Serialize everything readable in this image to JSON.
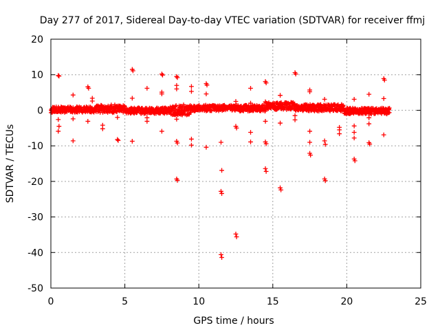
{
  "chart_data": {
    "type": "scatter",
    "title": "Day 277 of 2017, Sidereal Day-to-day VTEC variation (SDTVAR) for receiver ffmj",
    "xlabel": "GPS time / hours",
    "ylabel": "SDTVAR / TECUs",
    "xlim": [
      0,
      25
    ],
    "ylim": [
      -50,
      20
    ],
    "xticks": [
      0,
      5,
      10,
      15,
      20,
      25
    ],
    "yticks": [
      -50,
      -40,
      -30,
      -20,
      -10,
      0,
      10,
      20
    ],
    "grid": true,
    "marker": "plus",
    "color": "#ff0000",
    "series": [
      {
        "name": "SDTVAR",
        "band": {
          "x_start": 0.0,
          "x_end": 22.9,
          "step": 0.03,
          "segments": [
            {
              "x0": 0.0,
              "x1": 3.0,
              "center": 0.2,
              "spread": 0.9
            },
            {
              "x0": 3.0,
              "x1": 5.0,
              "center": 0.4,
              "spread": 1.2
            },
            {
              "x0": 5.0,
              "x1": 8.0,
              "center": -0.1,
              "spread": 0.9
            },
            {
              "x0": 8.0,
              "x1": 9.5,
              "center": 0.1,
              "spread": 1.5
            },
            {
              "x0": 9.5,
              "x1": 14.5,
              "center": 0.6,
              "spread": 0.9
            },
            {
              "x0": 14.5,
              "x1": 16.5,
              "center": 1.2,
              "spread": 1.1
            },
            {
              "x0": 16.5,
              "x1": 19.8,
              "center": 0.7,
              "spread": 1.0
            },
            {
              "x0": 19.8,
              "x1": 22.9,
              "center": -0.2,
              "spread": 0.9
            }
          ]
        },
        "points": [
          {
            "x": 0.5,
            "y": 9.8
          },
          {
            "x": 0.55,
            "y": 9.6
          },
          {
            "x": 0.5,
            "y": -2.6
          },
          {
            "x": 0.55,
            "y": -4.5
          },
          {
            "x": 0.5,
            "y": -5.9
          },
          {
            "x": 1.5,
            "y": 4.3
          },
          {
            "x": 1.5,
            "y": -2.4
          },
          {
            "x": 1.5,
            "y": -8.6
          },
          {
            "x": 2.5,
            "y": 6.6
          },
          {
            "x": 2.55,
            "y": 6.2
          },
          {
            "x": 2.5,
            "y": -3.1
          },
          {
            "x": 2.8,
            "y": 3.4
          },
          {
            "x": 2.8,
            "y": 2.6
          },
          {
            "x": 3.5,
            "y": -4.2
          },
          {
            "x": 3.5,
            "y": -5.2
          },
          {
            "x": 4.5,
            "y": -2.0
          },
          {
            "x": 4.5,
            "y": -8.2
          },
          {
            "x": 4.55,
            "y": -8.5
          },
          {
            "x": 5.5,
            "y": 11.5
          },
          {
            "x": 5.55,
            "y": 11.1
          },
          {
            "x": 5.5,
            "y": 3.4
          },
          {
            "x": 5.5,
            "y": -8.7
          },
          {
            "x": 6.5,
            "y": 6.2
          },
          {
            "x": 6.5,
            "y": -2.1
          },
          {
            "x": 6.5,
            "y": -3.1
          },
          {
            "x": 7.5,
            "y": 10.2
          },
          {
            "x": 7.55,
            "y": 9.9
          },
          {
            "x": 7.5,
            "y": 5.1
          },
          {
            "x": 7.5,
            "y": 4.6
          },
          {
            "x": 7.5,
            "y": -5.9
          },
          {
            "x": 8.5,
            "y": 9.5
          },
          {
            "x": 8.55,
            "y": 9.2
          },
          {
            "x": 8.5,
            "y": 7.0
          },
          {
            "x": 8.5,
            "y": 6.0
          },
          {
            "x": 8.5,
            "y": -2.5
          },
          {
            "x": 8.5,
            "y": -8.7
          },
          {
            "x": 8.55,
            "y": -9.2
          },
          {
            "x": 8.5,
            "y": -19.3
          },
          {
            "x": 8.55,
            "y": -19.7
          },
          {
            "x": 9.5,
            "y": 6.7
          },
          {
            "x": 9.5,
            "y": 5.3
          },
          {
            "x": 9.5,
            "y": -8.1
          },
          {
            "x": 9.5,
            "y": -9.8
          },
          {
            "x": 10.5,
            "y": 7.5
          },
          {
            "x": 10.55,
            "y": 7.1
          },
          {
            "x": 10.5,
            "y": 4.6
          },
          {
            "x": 10.5,
            "y": -10.4
          },
          {
            "x": 11.5,
            "y": -9.0
          },
          {
            "x": 11.55,
            "y": -16.9
          },
          {
            "x": 11.5,
            "y": -22.8
          },
          {
            "x": 11.55,
            "y": -23.4
          },
          {
            "x": 11.5,
            "y": -40.6
          },
          {
            "x": 11.55,
            "y": -41.4
          },
          {
            "x": 12.5,
            "y": 2.5
          },
          {
            "x": 12.5,
            "y": -4.5
          },
          {
            "x": 12.55,
            "y": -5.0
          },
          {
            "x": 12.5,
            "y": -34.8
          },
          {
            "x": 12.55,
            "y": -35.6
          },
          {
            "x": 13.5,
            "y": 6.2
          },
          {
            "x": 13.5,
            "y": 2.0
          },
          {
            "x": 13.5,
            "y": -6.2
          },
          {
            "x": 13.5,
            "y": -8.9
          },
          {
            "x": 14.5,
            "y": 8.1
          },
          {
            "x": 14.55,
            "y": 7.7
          },
          {
            "x": 14.5,
            "y": 2.4
          },
          {
            "x": 14.5,
            "y": -3.1
          },
          {
            "x": 14.5,
            "y": -8.9
          },
          {
            "x": 14.55,
            "y": -9.4
          },
          {
            "x": 14.5,
            "y": -16.4
          },
          {
            "x": 14.55,
            "y": -17.2
          },
          {
            "x": 15.5,
            "y": 4.2
          },
          {
            "x": 15.5,
            "y": -3.6
          },
          {
            "x": 15.5,
            "y": -21.8
          },
          {
            "x": 15.55,
            "y": -22.4
          },
          {
            "x": 16.5,
            "y": 10.6
          },
          {
            "x": 16.55,
            "y": 10.2
          },
          {
            "x": 16.5,
            "y": -1.5
          },
          {
            "x": 16.5,
            "y": -2.7
          },
          {
            "x": 17.5,
            "y": 5.7
          },
          {
            "x": 17.5,
            "y": 5.2
          },
          {
            "x": 17.5,
            "y": -5.9
          },
          {
            "x": 17.5,
            "y": -9.0
          },
          {
            "x": 17.5,
            "y": -12.1
          },
          {
            "x": 17.55,
            "y": -12.6
          },
          {
            "x": 18.5,
            "y": 3.1
          },
          {
            "x": 18.5,
            "y": -8.6
          },
          {
            "x": 18.55,
            "y": -9.6
          },
          {
            "x": 18.5,
            "y": -19.3
          },
          {
            "x": 18.55,
            "y": -19.8
          },
          {
            "x": 19.5,
            "y": -4.8
          },
          {
            "x": 19.5,
            "y": -5.5
          },
          {
            "x": 19.5,
            "y": -6.6
          },
          {
            "x": 20.5,
            "y": 3.1
          },
          {
            "x": 20.5,
            "y": -4.4
          },
          {
            "x": 20.5,
            "y": -6.2
          },
          {
            "x": 20.5,
            "y": -7.8
          },
          {
            "x": 20.5,
            "y": -13.7
          },
          {
            "x": 20.55,
            "y": -14.2
          },
          {
            "x": 21.5,
            "y": 4.5
          },
          {
            "x": 21.5,
            "y": -2.1
          },
          {
            "x": 21.5,
            "y": -3.8
          },
          {
            "x": 21.5,
            "y": -9.1
          },
          {
            "x": 21.55,
            "y": -9.5
          },
          {
            "x": 22.5,
            "y": 8.9
          },
          {
            "x": 22.55,
            "y": 8.5
          },
          {
            "x": 22.5,
            "y": 3.3
          },
          {
            "x": 22.5,
            "y": -6.9
          }
        ]
      }
    ]
  }
}
